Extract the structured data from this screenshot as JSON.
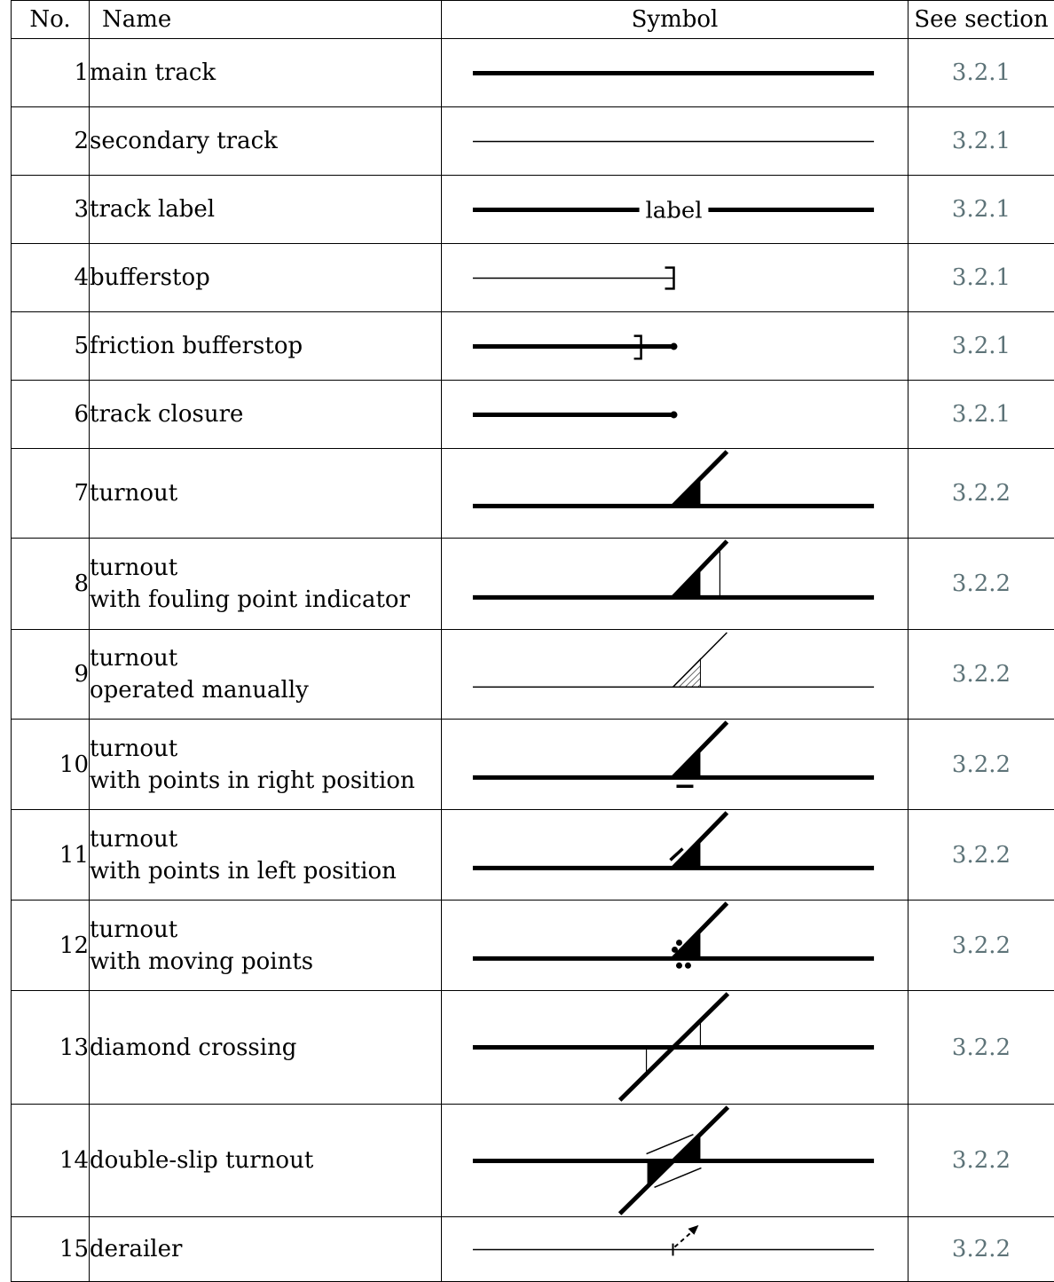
{
  "headers": {
    "no": "No.",
    "name": "Name",
    "symbol": "Symbol",
    "section": "See section"
  },
  "rows": [
    {
      "no": "1",
      "name": [
        "main track"
      ],
      "section": "3.2.1",
      "symbol": "main-track"
    },
    {
      "no": "2",
      "name": [
        "secondary track"
      ],
      "section": "3.2.1",
      "symbol": "secondary-track"
    },
    {
      "no": "3",
      "name": [
        "track label"
      ],
      "section": "3.2.1",
      "symbol": "track-label",
      "symbol_text": "label"
    },
    {
      "no": "4",
      "name": [
        "bufferstop"
      ],
      "section": "3.2.1",
      "symbol": "bufferstop"
    },
    {
      "no": "5",
      "name": [
        "friction bufferstop"
      ],
      "section": "3.2.1",
      "symbol": "friction-bufferstop"
    },
    {
      "no": "6",
      "name": [
        "track closure"
      ],
      "section": "3.2.1",
      "symbol": "track-closure"
    },
    {
      "no": "7",
      "name": [
        "turnout"
      ],
      "section": "3.2.2",
      "symbol": "turnout"
    },
    {
      "no": "8",
      "name": [
        "turnout",
        "with fouling point indicator"
      ],
      "section": "3.2.2",
      "symbol": "turnout-fouling"
    },
    {
      "no": "9",
      "name": [
        "turnout",
        "operated manually"
      ],
      "section": "3.2.2",
      "symbol": "turnout-manual"
    },
    {
      "no": "10",
      "name": [
        "turnout",
        "with points in right position"
      ],
      "section": "3.2.2",
      "symbol": "turnout-right"
    },
    {
      "no": "11",
      "name": [
        "turnout",
        "with points in left position"
      ],
      "section": "3.2.2",
      "symbol": "turnout-left"
    },
    {
      "no": "12",
      "name": [
        "turnout",
        "with moving points"
      ],
      "section": "3.2.2",
      "symbol": "turnout-moving"
    },
    {
      "no": "13",
      "name": [
        "diamond crossing"
      ],
      "section": "3.2.2",
      "symbol": "diamond-crossing"
    },
    {
      "no": "14",
      "name": [
        "double-slip turnout"
      ],
      "section": "3.2.2",
      "symbol": "double-slip"
    },
    {
      "no": "15",
      "name": [
        "derailer"
      ],
      "section": "3.2.2",
      "symbol": "derailer"
    }
  ]
}
